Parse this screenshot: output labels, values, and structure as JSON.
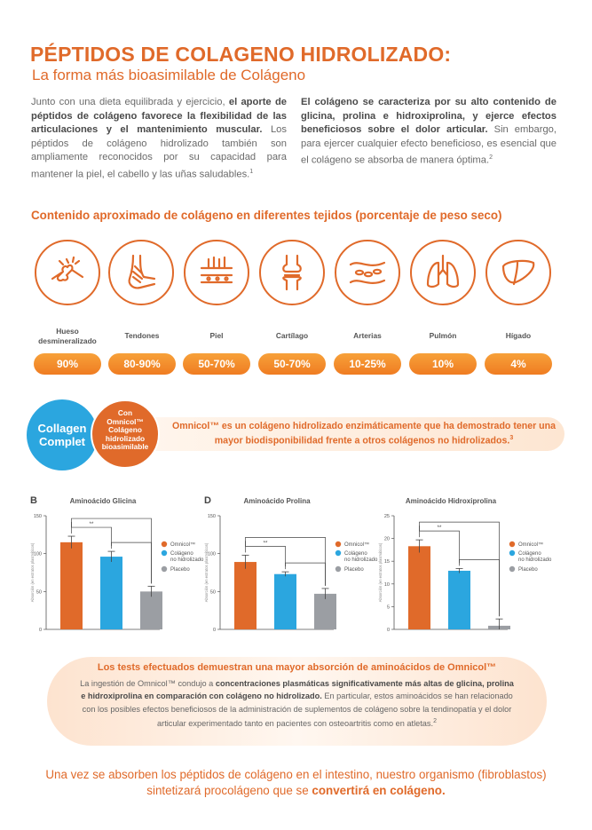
{
  "header": {
    "title": "PÉPTIDOS DE COLAGENO HIDROLIZADO:",
    "subtitle": "La forma más bioasimilable de Colágeno"
  },
  "intro_left": {
    "p1": "Junto con una dieta equilibrada y ejercicio, ",
    "p1_bold": "el aporte de péptidos de colágeno favorece la flexibilidad de las articulaciones y el mantenimiento muscular.",
    "p2": " Los péptidos de colágeno hidrolizado también son ampliamente reconocidos por su capacidad para mantener la piel, el cabello y las uñas saludables.",
    "ref": "1"
  },
  "intro_right": {
    "p1_bold": "El colágeno se caracteriza por su alto contenido de glicina, prolina e hidroxiprolina, y ejerce efectos beneficiosos sobre el dolor articular.",
    "p2": " Sin embargo, para ejercer cualquier efecto beneficioso, es esencial que el colágeno se absorba de manera óptima.",
    "ref": "2"
  },
  "tissues": {
    "heading": "Contenido aproximado de colágeno en diferentes tejidos (porcentaje de peso seco)",
    "items": [
      {
        "label": "Hueso desmineralizado",
        "value": "90%",
        "icon": "bone-joint-icon"
      },
      {
        "label": "Tendones",
        "value": "80-90%",
        "icon": "tendon-icon"
      },
      {
        "label": "Piel",
        "value": "50-70%",
        "icon": "skin-layers-icon"
      },
      {
        "label": "Cartílago",
        "value": "50-70%",
        "icon": "knee-cartilage-icon"
      },
      {
        "label": "Arterias",
        "value": "10-25%",
        "icon": "artery-icon"
      },
      {
        "label": "Pulmón",
        "value": "10%",
        "icon": "lungs-icon"
      },
      {
        "label": "Hígado",
        "value": "4%",
        "icon": "liver-icon"
      }
    ]
  },
  "banner": {
    "blue_line1": "Collagen",
    "blue_line2": "Complet",
    "orange_line1": "Con",
    "orange_line2": "Omnicol™",
    "orange_line3": "Colágeno",
    "orange_line4": "hidrolizado",
    "orange_line5": "bioasimilable",
    "text": "Omnicol™ es un colágeno hidrolizado enzimáticamente que ha demostrado tener una mayor biodisponibilidad frente a otros colágenos no hidrolizados.",
    "ref": "3"
  },
  "colors": {
    "omnicol": "#e06a2a",
    "non_hydrolyzed": "#2ba6df",
    "placebo": "#9b9ea3"
  },
  "chart_data": [
    {
      "type": "bar",
      "letter": "B",
      "title": "Aminoácido Glicina",
      "ylabel": "Absorción (en estratos plasmáticos)",
      "ylim": [
        0,
        150
      ],
      "yticks": [
        0,
        50,
        100,
        150
      ],
      "categories": [
        "Omnicol™",
        "Colágeno no hidrolizado",
        "Placebo"
      ],
      "values": [
        115,
        96,
        50
      ],
      "errors": [
        8,
        7,
        7
      ],
      "significance": "**"
    },
    {
      "type": "bar",
      "letter": "D",
      "title": "Aminoácido Prolina",
      "ylabel": "Absorción (en estratos plasmáticos)",
      "ylim": [
        0,
        150
      ],
      "yticks": [
        0,
        50,
        100,
        150
      ],
      "categories": [
        "Omnicol™",
        "Colágeno no hidrolizado",
        "Placebo"
      ],
      "values": [
        89,
        73,
        47
      ],
      "errors": [
        9,
        3,
        7
      ],
      "significance": "**"
    },
    {
      "type": "bar",
      "letter": "",
      "title": "Aminoácido Hidroxiprolina",
      "ylabel": "Absorción (en estratos plasmáticos)",
      "ylim": [
        0,
        25
      ],
      "yticks": [
        0,
        5,
        10,
        15,
        20,
        25
      ],
      "categories": [
        "Omnicol™",
        "Colágeno no hidrolizado",
        "Placebo"
      ],
      "values": [
        18.3,
        12.9,
        0.8
      ],
      "errors": [
        1.4,
        0.5,
        1.5
      ],
      "significance": "**"
    }
  ],
  "legend": {
    "omnicol": "Omnicol™",
    "non_hydro_1": "Colágeno",
    "non_hydro_2": "no hidrolizado",
    "placebo": "Placebo"
  },
  "tests": {
    "title": "Los tests efectuados demuestran una mayor absorción de aminoácidos de Omnicol™",
    "body1": "La ingestión de Omnicol™ condujo a ",
    "body1_bold": "concentraciones plasmáticas significativamente más altas de glicina, prolina e hidroxiprolina en comparación con colágeno no hidrolizado.",
    "body2": " En particular, estos aminoácidos se han relacionado con los posibles efectos beneficiosos de la administración de suplementos de colágeno sobre la tendinopatía y el dolor articular experimentado tanto en pacientes con osteoartritis como en atletas.",
    "ref": "2"
  },
  "final": {
    "text1": "Una vez se absorben los péptidos de colágeno en el intestino, nuestro organismo (fibroblastos) sintetizará procolágeno que se ",
    "text_bold": "convertirá en colágeno."
  }
}
